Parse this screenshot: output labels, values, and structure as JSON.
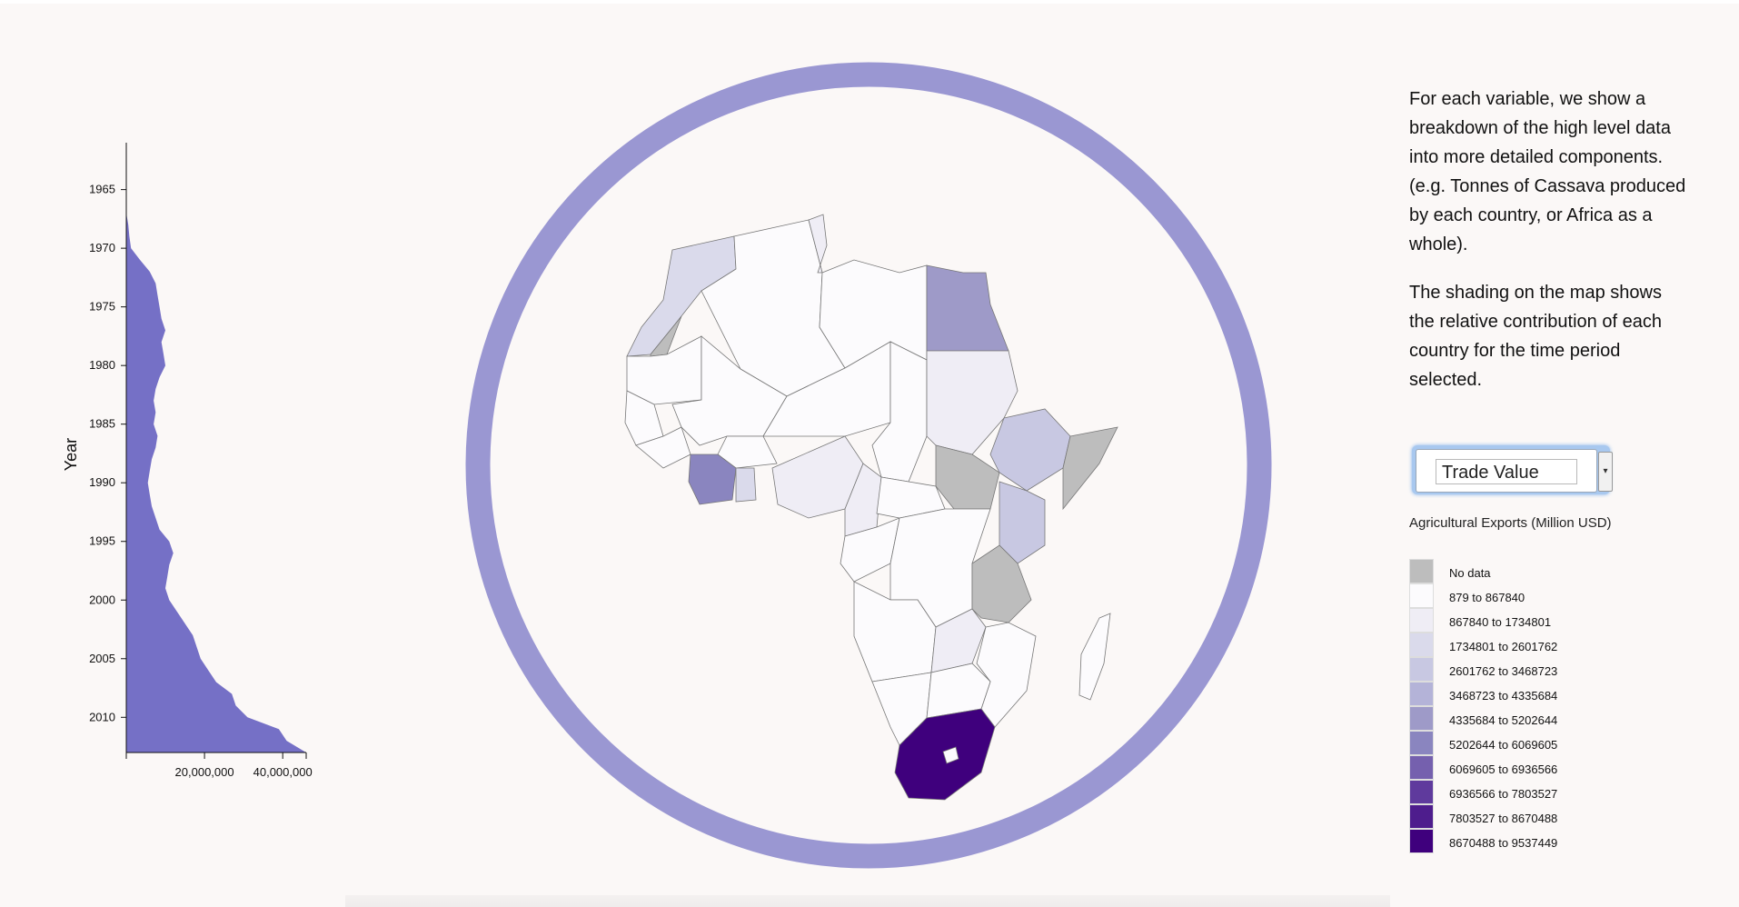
{
  "chart_data": {
    "type": "area",
    "orientation": "vertical",
    "ylabel": "Year",
    "year_ticks": [
      1965,
      1970,
      1975,
      1980,
      1985,
      1990,
      1995,
      2000,
      2005,
      2010
    ],
    "value_ticks": [
      20000000,
      40000000
    ],
    "value_tick_labels": [
      "20,000,000",
      "40,000,000"
    ],
    "value_range": [
      0,
      46000000
    ],
    "year_range": [
      1961,
      2013
    ],
    "series": [
      {
        "years": [
          1961,
          1962,
          1963,
          1964,
          1965,
          1966,
          1967,
          1968,
          1969,
          1970,
          1971,
          1972,
          1973,
          1974,
          1975,
          1976,
          1977,
          1978,
          1979,
          1980,
          1981,
          1982,
          1983,
          1984,
          1985,
          1986,
          1987,
          1988,
          1989,
          1990,
          1991,
          1992,
          1993,
          1994,
          1995,
          1996,
          1997,
          1998,
          1999,
          2000,
          2001,
          2002,
          2003,
          2004,
          2005,
          2006,
          2007,
          2008,
          2009,
          2010,
          2011,
          2012,
          2013
        ],
        "values": [
          0,
          0,
          0,
          0,
          0,
          0,
          0,
          500000,
          800000,
          1200000,
          3500000,
          6000000,
          7500000,
          8000000,
          8500000,
          9000000,
          10000000,
          9000000,
          9500000,
          10000000,
          8500000,
          7500000,
          7000000,
          7500000,
          7000000,
          8000000,
          7500000,
          6500000,
          6000000,
          5500000,
          6000000,
          6500000,
          7500000,
          8500000,
          11000000,
          12000000,
          11000000,
          10500000,
          10000000,
          11000000,
          13000000,
          15000000,
          17000000,
          18000000,
          19000000,
          21000000,
          23000000,
          27000000,
          28000000,
          31000000,
          39000000,
          41000000,
          46000000
        ]
      }
    ],
    "colors": {
      "area": "#7570c6",
      "ring": "#9a97d2"
    },
    "grid": false
  },
  "map": {
    "color_scale": [
      "#fcfbfd",
      "#efedf5",
      "#dadaeb",
      "#bcbddc",
      "#a9a7d2",
      "#9e9ac8",
      "#807dba",
      "#6a51a3",
      "#54278f",
      "#4a1486",
      "#3f007d"
    ],
    "no_data_color": "#bdbdbd"
  },
  "panel": {
    "para1": "For each variable, we show a breakdown of the high level data into more detailed components. (e.g. Tonnes of Cassava produced by each country, or Africa as a whole).",
    "para2": "The shading on the map shows the relative contribution of each country for the time period selected.",
    "select_value": "Trade Value",
    "legend_title": "Agricultural Exports (Million USD)"
  },
  "legend": [
    {
      "label": "No data",
      "color": "#bdbdbd"
    },
    {
      "label": "879 to 867840",
      "color": "#fcfbfd"
    },
    {
      "label": "867840 to 1734801",
      "color": "#efedf5"
    },
    {
      "label": "1734801 to 2601762",
      "color": "#dadaeb"
    },
    {
      "label": "2601762 to 3468723",
      "color": "#c8c8e2"
    },
    {
      "label": "3468723 to 4335684",
      "color": "#b4b3d8"
    },
    {
      "label": "4335684 to 5202644",
      "color": "#9e9ac8"
    },
    {
      "label": "5202644 to 6069605",
      "color": "#8a85bf"
    },
    {
      "label": "6069605 to 6936566",
      "color": "#7560ae"
    },
    {
      "label": "6936566 to 7803527",
      "color": "#5f3a9d"
    },
    {
      "label": "7803527 to 8670488",
      "color": "#4e1d8d"
    },
    {
      "label": "8670488 to 9537449",
      "color": "#3f007d"
    }
  ]
}
